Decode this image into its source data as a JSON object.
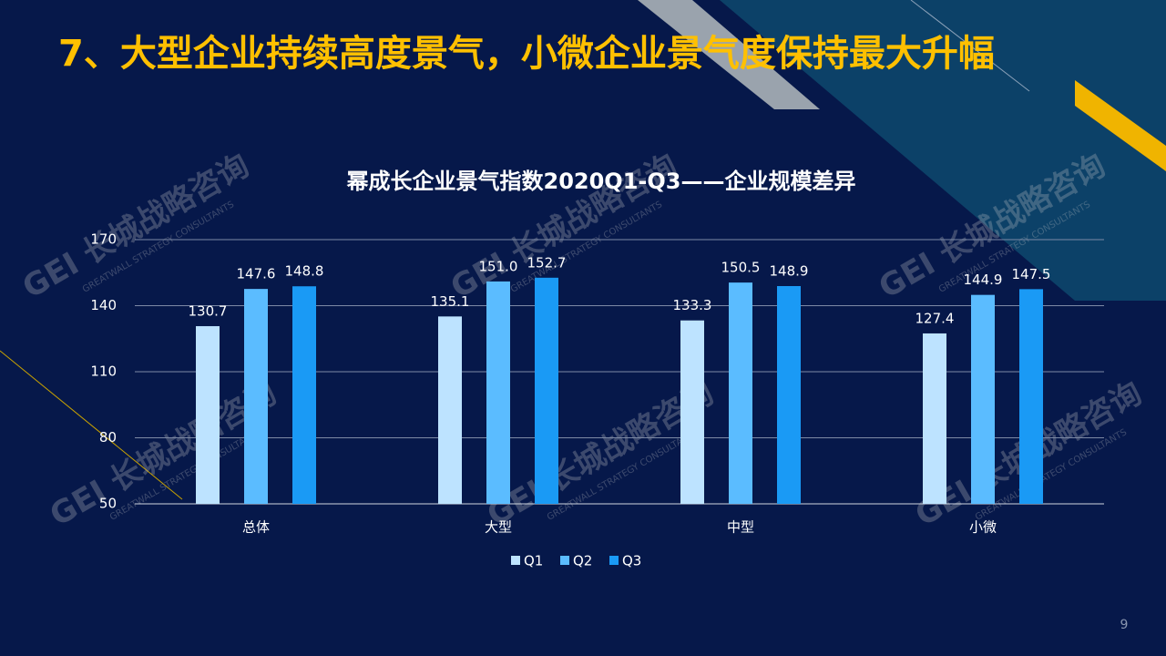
{
  "slide": {
    "title": "7、大型企业持续高度景气，小微企业景气度保持最大升幅",
    "page_number": "9"
  },
  "watermark": {
    "logo": "GEI 长城战略咨询",
    "sub": "GREATWALL STRATEGY CONSULTANTS"
  },
  "chart_data": {
    "type": "bar",
    "title": "幂成长企业景气指数2020Q1-Q3——企业规模差异",
    "categories": [
      "总体",
      "大型",
      "中型",
      "小微"
    ],
    "series": [
      {
        "name": "Q1",
        "color": "#bde3ff",
        "values": [
          130.7,
          135.1,
          133.3,
          127.4
        ]
      },
      {
        "name": "Q2",
        "color": "#5bbcff",
        "values": [
          147.6,
          151.0,
          150.5,
          144.9
        ],
        "value_labels": [
          "147.6",
          "151.0",
          "150.5",
          "144.9"
        ]
      },
      {
        "name": "Q3",
        "color": "#1a9af5",
        "values": [
          148.8,
          152.7,
          148.9,
          147.5
        ]
      }
    ],
    "ylim": [
      50,
      170
    ],
    "yticks": [
      50,
      80,
      110,
      140,
      170
    ],
    "grid": true,
    "legend": "bottom"
  }
}
